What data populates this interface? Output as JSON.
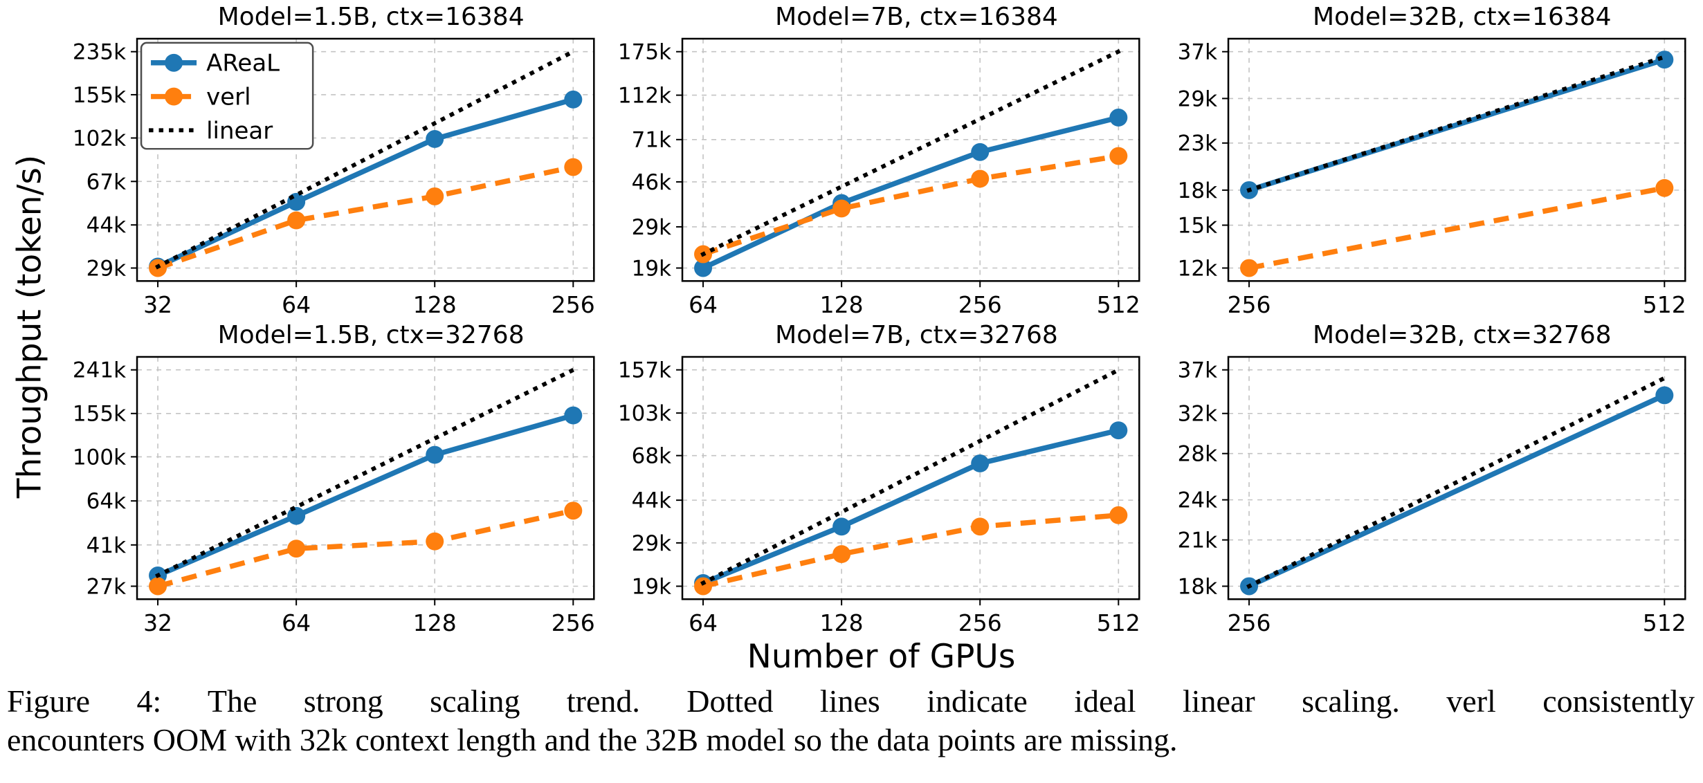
{
  "figure": {
    "ylabel": "Throughput (token/s)",
    "xlabel": "Number of GPUs"
  },
  "legend": {
    "position": "upper-left of first subplot",
    "entries": [
      {
        "label": "AReaL",
        "color": "#1f77b4",
        "line_style": "solid",
        "marker": true
      },
      {
        "label": "verl",
        "color": "#ff7f0e",
        "line_style": "dashed",
        "marker": true
      },
      {
        "label": "linear",
        "color": "#000000",
        "line_style": "dotted",
        "marker": false
      }
    ]
  },
  "caption": {
    "line1": "Figure 4: The strong scaling trend. Dotted lines indicate ideal linear scaling. verl consistently",
    "line2": "encounters OOM with 32k context length and the 32B model so the data points are missing."
  },
  "chart_data": [
    {
      "type": "line",
      "title": "Model=1.5B, ctx=16384",
      "x": [
        32,
        64,
        128,
        256
      ],
      "xtick_labels": [
        "32",
        "64",
        "128",
        "256"
      ],
      "x_scale": "log2",
      "y_scale": "log",
      "ytick_values": [
        29000,
        44000,
        67000,
        102000,
        155000,
        235000
      ],
      "ytick_labels": [
        "29k",
        "44k",
        "67k",
        "102k",
        "155k",
        "235k"
      ],
      "grid": true,
      "show_legend": true,
      "series": [
        {
          "name": "AReaL",
          "values": [
            29400,
            55000,
            101000,
            148000
          ]
        },
        {
          "name": "verl",
          "values": [
            29000,
            46000,
            58000,
            77000
          ]
        },
        {
          "name": "linear",
          "values": [
            29400,
            58800,
            117600,
            235200
          ]
        }
      ]
    },
    {
      "type": "line",
      "title": "Model=7B, ctx=16384",
      "x": [
        64,
        128,
        256,
        512
      ],
      "xtick_labels": [
        "64",
        "128",
        "256",
        "512"
      ],
      "x_scale": "log2",
      "y_scale": "log",
      "ytick_values": [
        19000,
        29000,
        46000,
        71000,
        112000,
        175000
      ],
      "ytick_labels": [
        "19k",
        "29k",
        "46k",
        "71k",
        "112k",
        "175k"
      ],
      "grid": true,
      "show_legend": false,
      "series": [
        {
          "name": "AReaL",
          "values": [
            19000,
            37000,
            62500,
            89000
          ]
        },
        {
          "name": "verl",
          "values": [
            21900,
            35000,
            47500,
            60000
          ]
        },
        {
          "name": "linear",
          "values": [
            21900,
            43800,
            87600,
            175200
          ]
        }
      ]
    },
    {
      "type": "line",
      "title": "Model=32B, ctx=16384",
      "x": [
        256,
        512
      ],
      "xtick_labels": [
        "256",
        "512"
      ],
      "x_scale": "log2",
      "y_scale": "log",
      "ytick_values": [
        12000,
        15000,
        18000,
        23000,
        29000,
        37000
      ],
      "ytick_labels": [
        "12k",
        "15k",
        "18k",
        "23k",
        "29k",
        "37k"
      ],
      "grid": true,
      "show_legend": false,
      "series": [
        {
          "name": "AReaL",
          "values": [
            18000,
            35500
          ]
        },
        {
          "name": "verl",
          "values": [
            12000,
            18200
          ]
        },
        {
          "name": "linear",
          "values": [
            18000,
            36000
          ]
        }
      ]
    },
    {
      "type": "line",
      "title": "Model=1.5B, ctx=32768",
      "x": [
        32,
        64,
        128,
        256
      ],
      "xtick_labels": [
        "32",
        "64",
        "128",
        "256"
      ],
      "x_scale": "log2",
      "y_scale": "log",
      "ytick_values": [
        27000,
        41000,
        64000,
        100000,
        155000,
        241000
      ],
      "ytick_labels": [
        "27k",
        "41k",
        "64k",
        "100k",
        "155k",
        "241k"
      ],
      "grid": true,
      "show_legend": false,
      "series": [
        {
          "name": "AReaL",
          "values": [
            30100,
            55000,
            102000,
            152000
          ]
        },
        {
          "name": "verl",
          "values": [
            27000,
            39500,
            42500,
            58000
          ]
        },
        {
          "name": "linear",
          "values": [
            30100,
            60200,
            120400,
            240800
          ]
        }
      ]
    },
    {
      "type": "line",
      "title": "Model=7B, ctx=32768",
      "x": [
        64,
        128,
        256,
        512
      ],
      "xtick_labels": [
        "64",
        "128",
        "256",
        "512"
      ],
      "x_scale": "log2",
      "y_scale": "log",
      "ytick_values": [
        19000,
        29000,
        44000,
        68000,
        103000,
        157000
      ],
      "ytick_labels": [
        "19k",
        "29k",
        "44k",
        "68k",
        "103k",
        "157k"
      ],
      "grid": true,
      "show_legend": false,
      "series": [
        {
          "name": "AReaL",
          "values": [
            19600,
            34000,
            63000,
            87000
          ]
        },
        {
          "name": "verl",
          "values": [
            19000,
            26000,
            34000,
            38000
          ]
        },
        {
          "name": "linear",
          "values": [
            19600,
            39200,
            78400,
            156800
          ]
        }
      ]
    },
    {
      "type": "line",
      "title": "Model=32B, ctx=32768",
      "x": [
        256,
        512
      ],
      "xtick_labels": [
        "256",
        "512"
      ],
      "x_scale": "log2",
      "y_scale": "log",
      "ytick_values": [
        18000,
        21000,
        24000,
        28000,
        32000,
        37000
      ],
      "ytick_labels": [
        "18k",
        "21k",
        "24k",
        "28k",
        "32k",
        "37k"
      ],
      "grid": true,
      "show_legend": false,
      "series": [
        {
          "name": "AReaL",
          "values": [
            18000,
            34000
          ]
        },
        {
          "name": "linear",
          "values": [
            18000,
            36000
          ]
        }
      ]
    }
  ]
}
